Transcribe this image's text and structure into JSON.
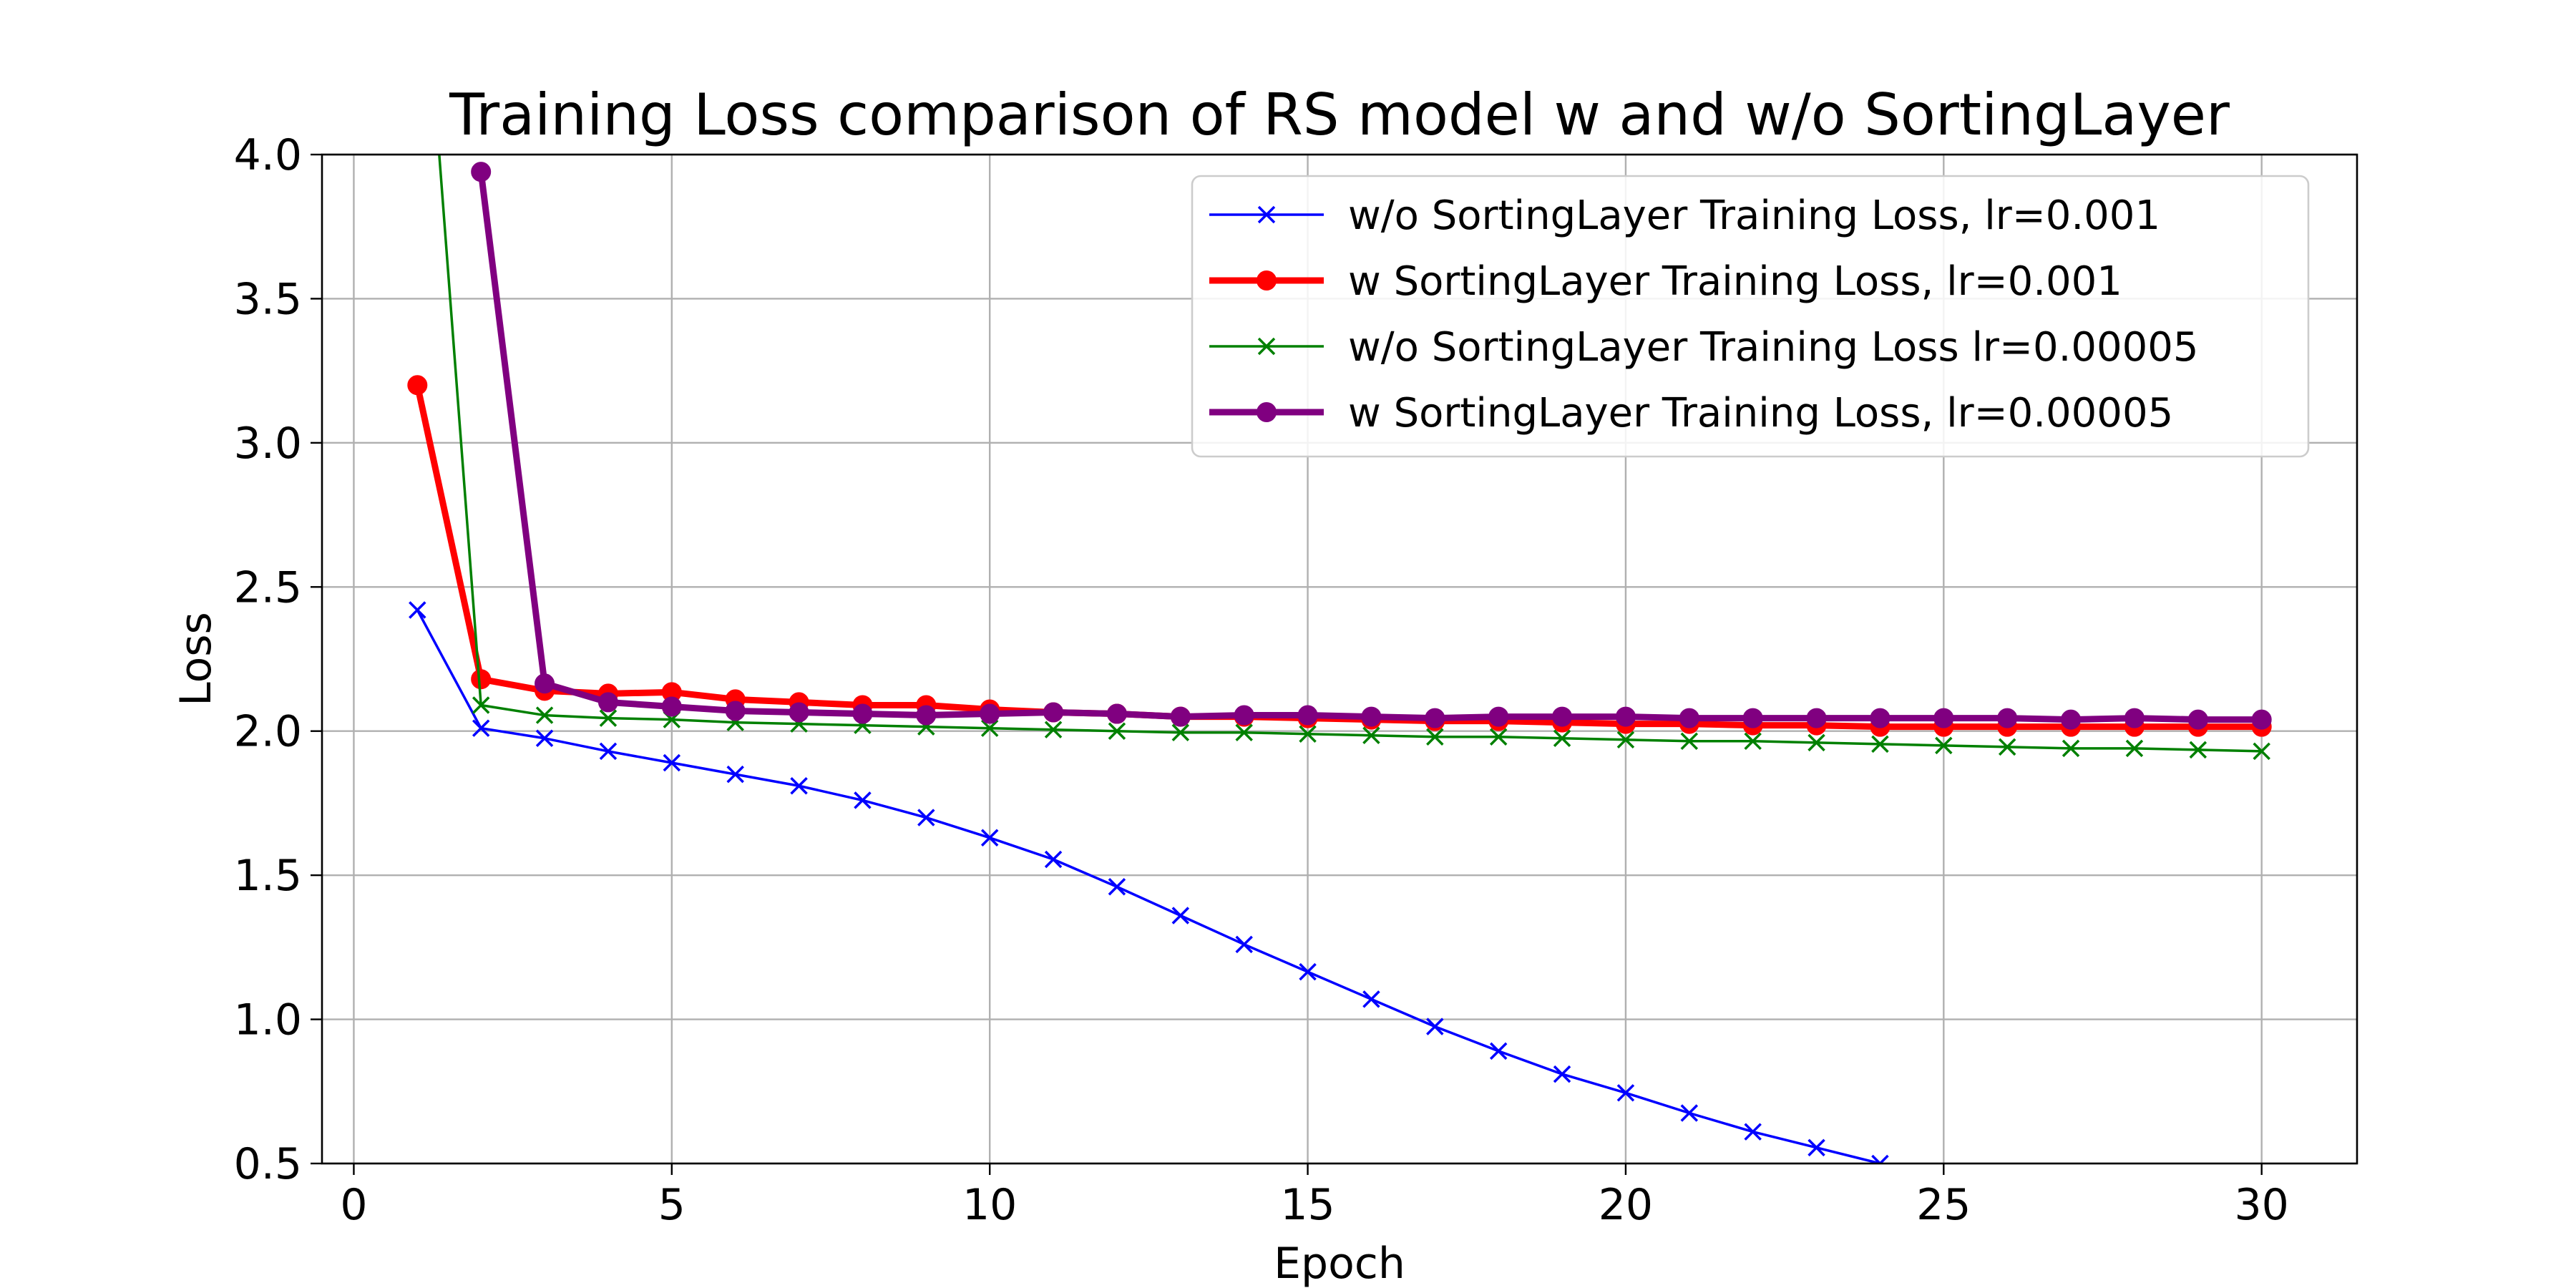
{
  "chart_data": {
    "type": "line",
    "title": "Training Loss comparison of RS model w and w/o SortingLayer",
    "xlabel": "Epoch",
    "ylabel": "Loss",
    "xlim": [
      -0.5,
      31.5
    ],
    "ylim": [
      0.5,
      4.0
    ],
    "xticks": [
      0,
      5,
      10,
      15,
      20,
      25,
      30
    ],
    "yticks": [
      0.5,
      1.0,
      1.5,
      2.0,
      2.5,
      3.0,
      3.5,
      4.0
    ],
    "xtick_labels": [
      "0",
      "5",
      "10",
      "15",
      "20",
      "25",
      "30"
    ],
    "ytick_labels": [
      "0.5",
      "1.0",
      "1.5",
      "2.0",
      "2.5",
      "3.0",
      "3.5",
      "4.0"
    ],
    "grid": true,
    "legend_position": "upper right",
    "series": [
      {
        "name": "w/o SortingLayer Training Loss, lr=0.001",
        "color": "#0000ff",
        "marker": "x",
        "linewidth": "thin",
        "x": [
          1,
          2,
          3,
          4,
          5,
          6,
          7,
          8,
          9,
          10,
          11,
          12,
          13,
          14,
          15,
          16,
          17,
          18,
          19,
          20,
          21,
          22,
          23,
          24
        ],
        "y": [
          2.42,
          2.01,
          1.975,
          1.93,
          1.89,
          1.85,
          1.81,
          1.76,
          1.7,
          1.63,
          1.555,
          1.46,
          1.36,
          1.26,
          1.165,
          1.07,
          0.975,
          0.89,
          0.81,
          0.745,
          0.675,
          0.61,
          0.555,
          0.5
        ]
      },
      {
        "name": "w SortingLayer Training Loss, lr=0.001",
        "color": "#ff0000",
        "marker": "o",
        "linewidth": "thick",
        "x": [
          1,
          2,
          3,
          4,
          5,
          6,
          7,
          8,
          9,
          10,
          11,
          12,
          13,
          14,
          15,
          16,
          17,
          18,
          19,
          20,
          21,
          22,
          23,
          24,
          25,
          26,
          27,
          28,
          29,
          30
        ],
        "y": [
          3.2,
          2.18,
          2.14,
          2.13,
          2.135,
          2.11,
          2.1,
          2.09,
          2.09,
          2.075,
          2.065,
          2.06,
          2.05,
          2.05,
          2.045,
          2.04,
          2.035,
          2.035,
          2.03,
          2.025,
          2.025,
          2.02,
          2.02,
          2.015,
          2.015,
          2.015,
          2.015,
          2.015,
          2.015,
          2.015
        ]
      },
      {
        "name": "w/o SortingLayer Training Loss lr=0.00005",
        "color": "#008000",
        "marker": "x",
        "linewidth": "thin",
        "x": [
          1,
          2,
          3,
          4,
          5,
          6,
          7,
          8,
          9,
          10,
          11,
          12,
          13,
          14,
          15,
          16,
          17,
          18,
          19,
          20,
          21,
          22,
          23,
          24,
          25,
          26,
          27,
          28,
          29,
          30
        ],
        "y": [
          5.0,
          2.09,
          2.055,
          2.045,
          2.04,
          2.03,
          2.025,
          2.02,
          2.015,
          2.01,
          2.005,
          2.0,
          1.995,
          1.995,
          1.99,
          1.985,
          1.98,
          1.98,
          1.975,
          1.97,
          1.965,
          1.965,
          1.96,
          1.955,
          1.95,
          1.945,
          1.94,
          1.94,
          1.935,
          1.93
        ]
      },
      {
        "name": "w SortingLayer Training Loss, lr=0.00005",
        "color": "#800080",
        "marker": "o",
        "linewidth": "thick",
        "x": [
          2,
          3,
          4,
          5,
          6,
          7,
          8,
          9,
          10,
          11,
          12,
          13,
          14,
          15,
          16,
          17,
          18,
          19,
          20,
          21,
          22,
          23,
          24,
          25,
          26,
          27,
          28,
          29,
          30
        ],
        "y": [
          3.94,
          2.165,
          2.1,
          2.085,
          2.07,
          2.065,
          2.06,
          2.055,
          2.06,
          2.065,
          2.06,
          2.05,
          2.055,
          2.055,
          2.05,
          2.045,
          2.05,
          2.05,
          2.05,
          2.045,
          2.045,
          2.045,
          2.045,
          2.045,
          2.045,
          2.04,
          2.045,
          2.04,
          2.04
        ]
      }
    ]
  }
}
